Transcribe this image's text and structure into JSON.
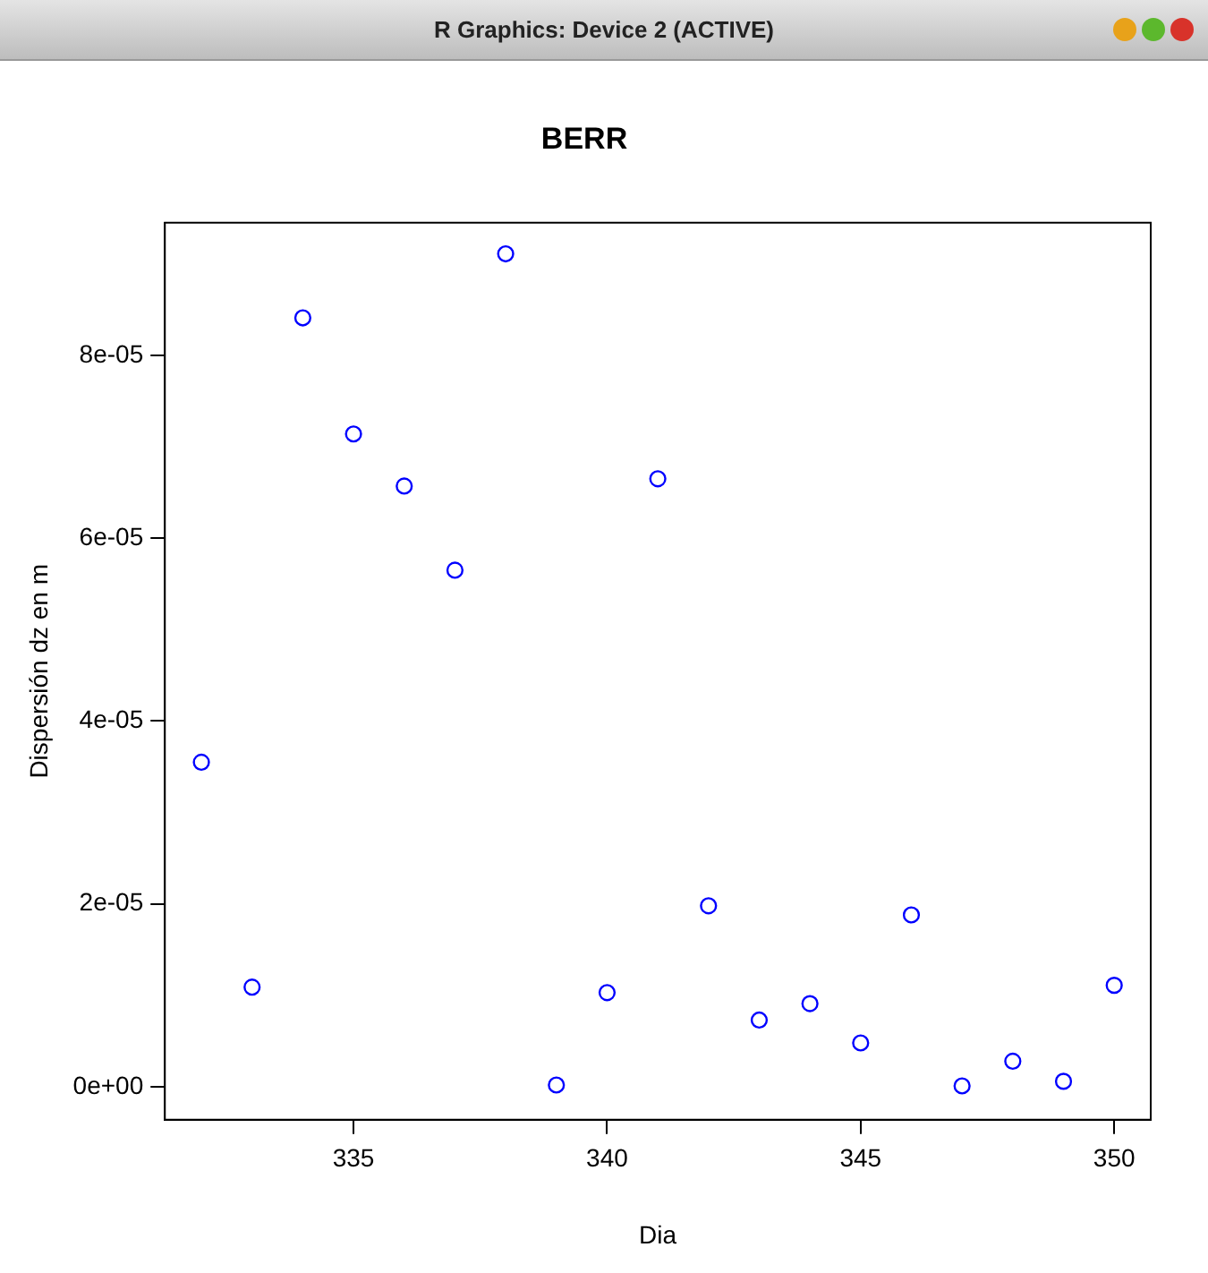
{
  "chart_data": {
    "type": "scatter",
    "title": "BERR",
    "xlabel": "Dia",
    "ylabel": "Dispersión dz en m",
    "annotations": [
      "R Graphics: Device 2 (ACTIVE)"
    ],
    "x": [
      332,
      333,
      334,
      335,
      336,
      337,
      338,
      339,
      340,
      341,
      342,
      343,
      344,
      345,
      346,
      347,
      348,
      349,
      350
    ],
    "series": [
      {
        "color": "#0000ff",
        "values": [
          3.55e-05,
          1.09e-05,
          8.41e-05,
          7.14e-05,
          6.57e-05,
          5.65e-05,
          9.11e-05,
          2e-07,
          1.03e-05,
          6.65e-05,
          1.98e-05,
          7.3e-06,
          9.1e-06,
          4.8e-06,
          1.88e-05,
          1e-07,
          2.8e-06,
          6e-07,
          1.11e-05
        ]
      }
    ],
    "xlim": [
      331.28,
      350.72
    ],
    "xticks": [
      335,
      340,
      345,
      350
    ],
    "ylim": [
      -3.6e-06,
      9.45e-05
    ],
    "yticks": [
      {
        "value": 0,
        "label": "0e+00"
      },
      {
        "value": 2e-05,
        "label": "2e-05"
      },
      {
        "value": 4e-05,
        "label": "4e-05"
      },
      {
        "value": 6e-05,
        "label": "6e-05"
      },
      {
        "value": 8e-05,
        "label": "8e-05"
      }
    ],
    "marker": "circle",
    "grid": false,
    "legend": false
  }
}
